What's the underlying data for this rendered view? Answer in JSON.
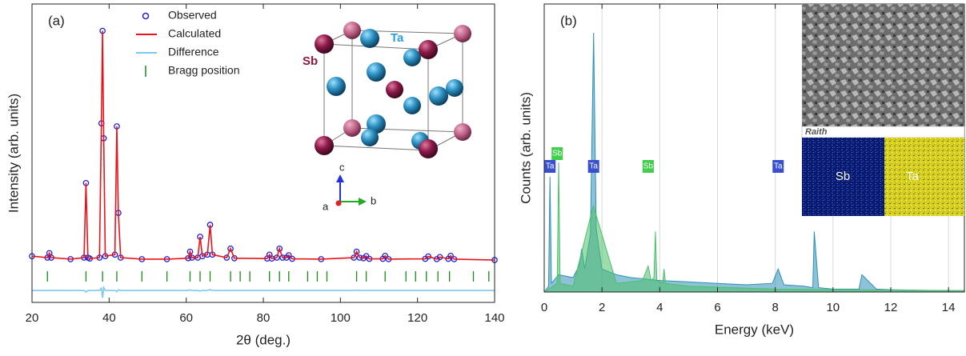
{
  "chart_data": [
    {
      "type": "line",
      "panel_label": "(a)",
      "x_label": "2θ (deg.)",
      "y_label": "Intensity (arb. units)",
      "xlim": [
        20,
        140
      ],
      "xticks": [
        20,
        40,
        60,
        80,
        100,
        120,
        140
      ],
      "ylim": [
        0,
        100
      ],
      "x": [
        20,
        24,
        24.5,
        25,
        30,
        33.5,
        34,
        34.5,
        35,
        37.5,
        38,
        38.3,
        38.6,
        39,
        41.5,
        42,
        42.4,
        43,
        48.5,
        55,
        60.5,
        61,
        61.5,
        63,
        63.6,
        64.2,
        65.5,
        66.2,
        66.8,
        70.5,
        71.5,
        72.5,
        81,
        81.6,
        82.2,
        83.5,
        84.2,
        85,
        86,
        86.6,
        87.5,
        95,
        103.5,
        104.2,
        105,
        106,
        106.7,
        107.5,
        111,
        111.6,
        112.5,
        122,
        122.8,
        125,
        125.8,
        128,
        128.6,
        129.5,
        140
      ],
      "series": [
        {
          "name": "Observed",
          "color": "#1f1fd6",
          "style": "markers",
          "values": [
            15.5,
            15,
            16.5,
            15,
            14.5,
            15,
            40,
            15,
            14.7,
            15,
            60,
            91,
            55,
            15.5,
            16,
            59,
            30,
            15,
            14.5,
            14.5,
            14.8,
            17,
            15,
            15,
            22,
            15.5,
            16,
            26,
            16,
            15,
            18,
            14.8,
            14.7,
            16,
            14.7,
            15,
            18,
            15,
            15,
            15.8,
            14.6,
            14.5,
            15,
            17,
            15,
            14.8,
            15.5,
            14.6,
            14.6,
            15.6,
            14.5,
            14.6,
            15.4,
            14.5,
            15.2,
            14.6,
            15.6,
            14.5,
            14.2
          ]
        },
        {
          "name": "Calculated",
          "color": "#e8141c",
          "style": "line",
          "values": [
            15.5,
            15,
            16.5,
            15,
            14.5,
            15,
            40,
            15,
            14.7,
            15,
            60,
            91,
            55,
            15.5,
            16,
            59,
            30,
            15,
            14.5,
            14.5,
            14.8,
            17,
            15,
            15,
            22,
            15.5,
            16,
            26,
            16,
            15,
            18,
            14.8,
            14.7,
            16,
            14.7,
            15,
            18,
            15,
            15,
            15.8,
            14.6,
            14.5,
            15,
            17,
            15,
            14.8,
            15.5,
            14.6,
            14.6,
            15.6,
            14.5,
            14.6,
            15.4,
            14.5,
            15.2,
            14.6,
            15.6,
            14.5,
            14.2
          ]
        },
        {
          "name": "Difference",
          "color": "#7ec8f0",
          "style": "line",
          "values": [
            4,
            4,
            4,
            4,
            4,
            4,
            3.5,
            4,
            4,
            4,
            4.8,
            1.5,
            5,
            4,
            4,
            3.6,
            4.2,
            4,
            4,
            4,
            4,
            4.2,
            4,
            4,
            3.8,
            4,
            4,
            4.3,
            4,
            4,
            4,
            4,
            4,
            4,
            4,
            4,
            4,
            4,
            4,
            4,
            4,
            4,
            4,
            4.1,
            4,
            4,
            4,
            4,
            4,
            4,
            4,
            4,
            4,
            4,
            4,
            4,
            4,
            4,
            4
          ]
        },
        {
          "name": "Bragg position",
          "color": "#1a8a1a",
          "style": "ticks",
          "x": [
            24,
            34,
            38.3,
            42,
            48.5,
            55,
            61,
            63.6,
            66.2,
            71.5,
            74,
            76.5,
            81.6,
            84.2,
            86.6,
            91.5,
            94,
            96.5,
            104.2,
            106.7,
            111.6,
            117,
            119.5,
            122.3,
            125.3,
            128.3,
            134.5,
            138.5
          ]
        }
      ],
      "inset_labels": [
        "Ta",
        "Sb",
        "c",
        "a",
        "b"
      ]
    },
    {
      "type": "area",
      "panel_label": "(b)",
      "x_label": "Energy (keV)",
      "y_label": "Counts (arb. units)",
      "xlim": [
        0,
        14.55
      ],
      "xticks": [
        0,
        2,
        4,
        6,
        8,
        10,
        12,
        14
      ],
      "ylim": [
        0,
        100
      ],
      "grid": true,
      "series": [
        {
          "color": "#2f8fb8",
          "x": [
            0,
            0.15,
            0.2,
            0.25,
            0.5,
            1.0,
            1.2,
            1.3,
            1.4,
            1.6,
            1.71,
            1.8,
            2.0,
            2.5,
            3.0,
            3.5,
            4.0,
            5.0,
            6.0,
            7.0,
            7.9,
            8.1,
            8.3,
            9.0,
            9.3,
            9.35,
            9.5,
            10.0,
            10.9,
            11.0,
            11.5,
            12,
            13,
            14,
            14.55
          ],
          "values": [
            0,
            2,
            40,
            3,
            6,
            5,
            9,
            15,
            8,
            20,
            90,
            22,
            8,
            6,
            5,
            4.5,
            4,
            3.5,
            3,
            2.5,
            3,
            8,
            2.5,
            2,
            1.5,
            21,
            1.5,
            1,
            1,
            6,
            1,
            0.8,
            0.6,
            0.5,
            0.4
          ]
        },
        {
          "color": "#4cc06a",
          "x": [
            0,
            0.45,
            0.5,
            0.55,
            1.0,
            1.7,
            2.5,
            3.4,
            3.6,
            3.7,
            3.8,
            3.85,
            3.9,
            4.1,
            4.15,
            4.2,
            5,
            8,
            14.55
          ],
          "values": [
            0,
            3,
            45,
            3,
            2,
            30,
            3,
            4,
            9,
            4,
            5,
            21,
            4,
            3,
            8,
            3,
            2,
            1,
            0.5
          ]
        }
      ],
      "peak_labels": [
        {
          "text": "Ta",
          "x": 0.2,
          "color": "#3a4fd0"
        },
        {
          "text": "Sb",
          "x": 0.45,
          "color": "#3fcf4a"
        },
        {
          "text": "Ta",
          "x": 1.71,
          "color": "#3a4fd0"
        },
        {
          "text": "Sb",
          "x": 3.6,
          "color": "#3fcf4a"
        },
        {
          "text": "Ta",
          "x": 8.1,
          "color": "#3a4fd0"
        }
      ],
      "inset_text": "Raith",
      "map_labels": [
        "Sb",
        "Ta"
      ]
    }
  ]
}
